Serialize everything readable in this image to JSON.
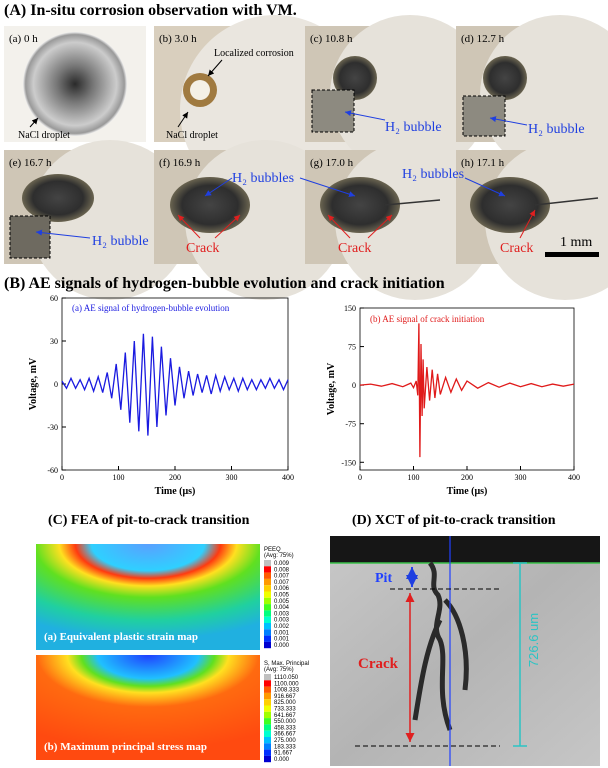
{
  "panel_a": {
    "title": "(A) In-situ corrosion observation with VM.",
    "photos": [
      "(a) 0 h",
      "(b) 3.0 h",
      "(c) 10.8 h",
      "(d) 12.7 h",
      "(e) 16.7 h",
      "(f) 16.9 h",
      "(g) 17.0 h",
      "(h) 17.1 h"
    ],
    "annotations": {
      "nacl_a": "NaCl droplet",
      "nacl_b": "NaCl droplet",
      "localized": "Localized corrosion",
      "bubble_c": "H₂ bubble",
      "bubble_d": "H₂ bubble",
      "bubble_e": "H₂ bubble",
      "bubbles_fg": "H₂ bubbles",
      "bubbles_h": "H₂ bubbles",
      "crack_f": "Crack",
      "crack_g": "Crack",
      "crack_h": "Crack"
    },
    "scale_bar": "1 mm"
  },
  "panel_b": {
    "title": "(B) AE signals of hydrogen-bubble evolution and crack initiation"
  },
  "chart_data": [
    {
      "type": "line",
      "title": "(a) AE signal of hydrogen-bubble evolution",
      "x_label": "Time (μs)",
      "y_label": "Voltage, mV",
      "x": [
        0,
        8,
        16,
        24,
        32,
        40,
        48,
        56,
        64,
        72,
        80,
        88,
        96,
        104,
        112,
        120,
        128,
        136,
        144,
        152,
        160,
        168,
        176,
        184,
        192,
        200,
        208,
        216,
        224,
        232,
        240,
        248,
        256,
        264,
        272,
        280,
        288,
        296,
        304,
        312,
        320,
        328,
        336,
        344,
        352,
        360,
        368,
        376,
        384,
        392,
        400
      ],
      "series": [
        {
          "name": "(a) AE signal of hydrogen-bubble evolution",
          "color": "#1a1ae0",
          "values": [
            2,
            -3,
            4,
            -3,
            3,
            -4,
            4,
            -5,
            5,
            -6,
            8,
            -10,
            14,
            -18,
            22,
            -27,
            30,
            -33,
            35,
            -36,
            33,
            -30,
            26,
            -22,
            18,
            -15,
            12,
            -10,
            9,
            -8,
            7,
            -6,
            6,
            -7,
            6,
            -5,
            5,
            -4,
            4,
            -5,
            4,
            -4,
            3,
            -4,
            3,
            -3,
            4,
            -3,
            3,
            -4,
            3
          ]
        }
      ],
      "xlim": [
        0,
        400
      ],
      "xticks": [
        0,
        100,
        200,
        300,
        400
      ],
      "ylim": [
        -60,
        60
      ],
      "yticks": [
        -60,
        -30,
        0,
        30,
        60
      ]
    },
    {
      "type": "line",
      "title": "(b) AE signal of crack initiation",
      "x_label": "Time (μs)",
      "y_label": "Voltage, mV",
      "x": [
        0,
        20,
        40,
        60,
        80,
        95,
        100,
        105,
        108,
        110,
        112,
        114,
        116,
        118,
        120,
        125,
        130,
        135,
        140,
        145,
        150,
        160,
        170,
        180,
        190,
        200,
        220,
        240,
        260,
        280,
        300,
        320,
        340,
        360,
        380,
        400
      ],
      "series": [
        {
          "name": "(b) AE signal of crack initiation",
          "color": "#e01a1a",
          "values": [
            0,
            2,
            -2,
            3,
            -3,
            4,
            -5,
            8,
            -20,
            120,
            -140,
            80,
            -60,
            50,
            -45,
            35,
            -30,
            30,
            -25,
            22,
            -18,
            15,
            -14,
            12,
            -10,
            8,
            -6,
            5,
            -4,
            4,
            -3,
            3,
            -3,
            2,
            -2,
            2
          ]
        }
      ],
      "xlim": [
        0,
        400
      ],
      "xticks": [
        0,
        100,
        200,
        300,
        400
      ],
      "ylim": [
        -165,
        150
      ],
      "yticks": [
        -150,
        -75,
        0,
        75,
        150
      ]
    }
  ],
  "panel_c": {
    "title": "(C) FEA of pit-to-crack transition",
    "map_a": "(a) Equivalent plastic strain map",
    "map_b": "(b) Maximum principal stress map",
    "legend_a": {
      "title": [
        "PEEQ",
        "(Avg: 75%)"
      ],
      "values": [
        "0.009",
        "0.008",
        "0.007",
        "0.007",
        "0.006",
        "0.005",
        "0.005",
        "0.004",
        "0.003",
        "0.003",
        "0.002",
        "0.001",
        "0.001",
        "0.000"
      ]
    },
    "legend_b": {
      "title": [
        "S, Max. Principal",
        "(Avg: 75%)"
      ],
      "values": [
        "1110.050",
        "1100.000",
        "1008.333",
        "916.667",
        "825.000",
        "733.333",
        "641.667",
        "550.000",
        "458.333",
        "366.667",
        "275.000",
        "183.333",
        "91.667",
        "0.000"
      ]
    }
  },
  "panel_d": {
    "title": "(D) XCT of pit-to-crack transition",
    "pit": "Pit",
    "crack": "Crack",
    "depth": "726.6 um"
  }
}
